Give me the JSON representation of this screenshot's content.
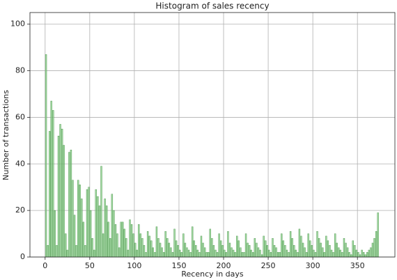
{
  "chart_data": {
    "type": "histogram",
    "title": "Histogram of sales recency",
    "x_label": "Recency in days",
    "y_label": "Number of transactions",
    "color": "#8fd18f",
    "edge_color": "#3a8a3a",
    "grid": true,
    "bins": [
      0,
      2,
      4,
      6,
      8,
      10,
      12,
      14,
      16,
      18,
      20,
      22,
      24,
      26,
      28,
      30,
      32,
      34,
      36,
      38,
      40,
      42,
      44,
      46,
      48,
      50,
      52,
      54,
      56,
      58,
      60,
      62,
      64,
      66,
      68,
      70,
      72,
      74,
      76,
      78,
      80,
      82,
      84,
      86,
      88,
      90,
      92,
      94,
      96,
      98,
      100,
      102,
      104,
      106,
      108,
      110,
      112,
      114,
      116,
      118,
      120,
      122,
      124,
      126,
      128,
      130,
      132,
      134,
      136,
      138,
      140,
      142,
      144,
      146,
      148,
      150,
      152,
      154,
      156,
      158,
      160,
      162,
      164,
      166,
      168,
      170,
      172,
      174,
      176,
      178,
      180,
      182,
      184,
      186,
      188,
      190,
      192,
      194,
      196,
      198,
      200,
      202,
      204,
      206,
      208,
      210,
      212,
      214,
      216,
      218,
      220,
      222,
      224,
      226,
      228,
      230,
      232,
      234,
      236,
      238,
      240,
      242,
      244,
      246,
      248,
      250,
      252,
      254,
      256,
      258,
      260,
      262,
      264,
      266,
      268,
      270,
      272,
      274,
      276,
      278,
      280,
      282,
      284,
      286,
      288,
      290,
      292,
      294,
      296,
      298,
      300,
      302,
      304,
      306,
      308,
      310,
      312,
      314,
      316,
      318,
      320,
      322,
      324,
      326,
      328,
      330,
      332,
      334,
      336,
      338,
      340,
      342,
      344,
      346,
      348,
      350,
      352,
      354,
      356,
      358,
      360,
      362,
      364,
      366,
      368,
      370,
      372,
      374
    ],
    "counts": [
      87,
      5,
      54,
      67,
      63,
      20,
      5,
      52,
      57,
      55,
      48,
      10,
      3,
      45,
      46,
      33,
      18,
      5,
      33,
      31,
      25,
      15,
      5,
      29,
      30,
      20,
      8,
      3,
      29,
      26,
      22,
      39,
      10,
      25,
      22,
      15,
      8,
      27,
      20,
      14,
      10,
      4,
      15,
      15,
      12,
      8,
      3,
      16,
      14,
      10,
      6,
      3,
      14,
      10,
      8,
      5,
      2,
      11,
      9,
      7,
      4,
      2,
      13,
      8,
      6,
      4,
      2,
      11,
      8,
      6,
      4,
      2,
      12,
      7,
      5,
      3,
      2,
      10,
      6,
      4,
      3,
      2,
      13,
      7,
      5,
      3,
      2,
      9,
      6,
      4,
      2,
      2,
      12,
      8,
      5,
      3,
      2,
      10,
      7,
      5,
      3,
      2,
      11,
      6,
      4,
      3,
      2,
      9,
      7,
      4,
      2,
      2,
      10,
      6,
      5,
      3,
      2,
      8,
      6,
      4,
      3,
      1,
      9,
      7,
      5,
      3,
      2,
      8,
      5,
      4,
      2,
      2,
      10,
      7,
      5,
      3,
      2,
      11,
      8,
      5,
      3,
      2,
      12,
      9,
      6,
      4,
      2,
      10,
      7,
      5,
      3,
      2,
      11,
      8,
      6,
      4,
      2,
      9,
      7,
      5,
      3,
      2,
      10,
      6,
      4,
      3,
      2,
      8,
      6,
      4,
      2,
      1,
      7,
      5,
      3,
      2,
      1,
      3,
      2,
      1,
      2,
      3,
      4,
      6,
      8,
      11,
      19
    ],
    "xlim": [
      -17,
      392
    ],
    "ylim": [
      0,
      105
    ],
    "xticks": [
      0,
      50,
      100,
      150,
      200,
      250,
      300,
      350
    ],
    "yticks": [
      0,
      20,
      40,
      60,
      80,
      100
    ]
  }
}
